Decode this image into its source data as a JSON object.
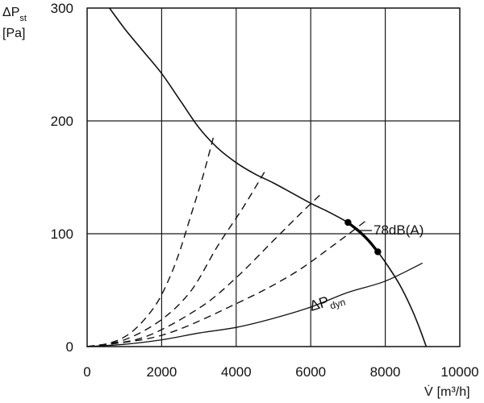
{
  "chart_data": {
    "type": "line",
    "title": "",
    "xlabel": {
      "symbol": "V̇",
      "unit": "[m³/h]"
    },
    "ylabel": {
      "symbol_base": "ΔP",
      "symbol_sub": "st",
      "unit": "[Pa]"
    },
    "xlim": [
      0,
      10000
    ],
    "ylim": [
      0,
      300
    ],
    "x_ticks": [
      0,
      2000,
      4000,
      6000,
      8000,
      10000
    ],
    "y_ticks": [
      0,
      100,
      200,
      300
    ],
    "x_tick_labels": [
      "0",
      "2000",
      "4000",
      "6000",
      "8000",
      "10000"
    ],
    "y_tick_labels": [
      "0",
      "100",
      "200",
      "300"
    ],
    "grid": true,
    "series": [
      {
        "style": "solid",
        "points": [
          [
            600,
            300
          ],
          [
            1000,
            282
          ],
          [
            1500,
            262
          ],
          [
            2000,
            242
          ],
          [
            2500,
            218
          ],
          [
            3000,
            194
          ],
          [
            3500,
            176
          ],
          [
            4000,
            163
          ],
          [
            4500,
            153
          ],
          [
            5000,
            145
          ],
          [
            5500,
            136
          ],
          [
            6000,
            127
          ],
          [
            6500,
            119
          ],
          [
            7000,
            110
          ],
          [
            7300,
            103
          ],
          [
            7500,
            96
          ],
          [
            7800,
            84
          ],
          [
            8100,
            70
          ],
          [
            8400,
            54
          ],
          [
            8700,
            34
          ],
          [
            8900,
            18
          ],
          [
            9100,
            0
          ]
        ]
      },
      {
        "style": "bold",
        "points": [
          [
            7000,
            110
          ],
          [
            7300,
            102
          ],
          [
            7550,
            94
          ],
          [
            7800,
            84
          ]
        ]
      },
      {
        "style": "dashed",
        "points": [
          [
            0,
            0
          ],
          [
            600,
            3
          ],
          [
            1200,
            13
          ],
          [
            1800,
            35
          ],
          [
            2200,
            60
          ],
          [
            2500,
            86
          ],
          [
            2800,
            118
          ],
          [
            3100,
            150
          ],
          [
            3400,
            187
          ]
        ]
      },
      {
        "style": "dashed",
        "points": [
          [
            0,
            0
          ],
          [
            1000,
            6
          ],
          [
            2000,
            24
          ],
          [
            2800,
            50
          ],
          [
            3500,
            89
          ],
          [
            4200,
            124
          ],
          [
            4800,
            157
          ]
        ]
      },
      {
        "style": "dashed",
        "points": [
          [
            0,
            0
          ],
          [
            1500,
            8
          ],
          [
            3000,
            34
          ],
          [
            4000,
            61
          ],
          [
            5000,
            94
          ],
          [
            5700,
            117
          ],
          [
            6300,
            136
          ]
        ]
      },
      {
        "style": "dashed",
        "points": [
          [
            0,
            0
          ],
          [
            2000,
            10
          ],
          [
            4000,
            38
          ],
          [
            5500,
            64
          ],
          [
            6700,
            92
          ],
          [
            7500,
            112
          ]
        ]
      },
      {
        "style": "solid-thin",
        "points": [
          [
            0,
            0
          ],
          [
            1000,
            2
          ],
          [
            2000,
            6
          ],
          [
            3000,
            12
          ],
          [
            4000,
            17
          ],
          [
            5000,
            25
          ],
          [
            6000,
            35
          ],
          [
            7000,
            48
          ],
          [
            8000,
            58
          ],
          [
            9000,
            74
          ]
        ]
      }
    ],
    "operating_points": [
      [
        7000,
        110
      ],
      [
        7800,
        84
      ]
    ],
    "annotations": [
      {
        "text": "78dB(A)",
        "x": 7700,
        "y": 104
      },
      {
        "text_base": "ΔP",
        "text_sub": "dyn",
        "x": 6000,
        "y": 32
      }
    ]
  }
}
